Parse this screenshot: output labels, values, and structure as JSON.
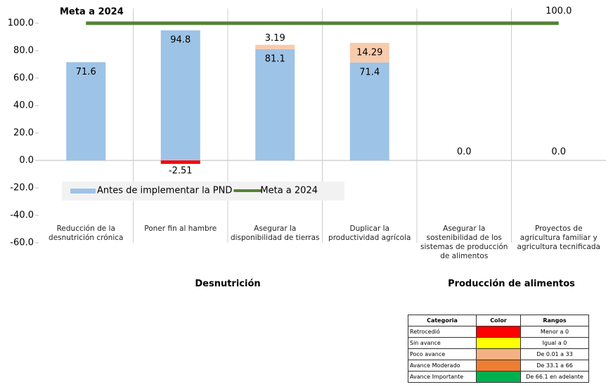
{
  "chart_data": {
    "type": "bar",
    "title": "Meta a 2024",
    "categories": [
      "Reducción de la desnutrición crónica",
      "Poner fin al hambre",
      "Asegurar la disponibilidad de tierras",
      "Duplicar la productividad agrícola",
      "Asegurar la sostenibilidad de los sistemas de producción de alimentos",
      "Proyectos de agricultura familiar y agricultura tecnificada"
    ],
    "groups": [
      {
        "label": "Desnutrición",
        "categories": [
          0,
          1,
          2,
          3
        ]
      },
      {
        "label": "Producción de alimentos",
        "categories": [
          4,
          5
        ]
      }
    ],
    "series": [
      {
        "name": "Antes de implementar la PND",
        "color": "#9dc3e6",
        "values": [
          71.6,
          94.8,
          81.1,
          71.4,
          0,
          0
        ],
        "value_labels": [
          "71.6",
          "94.8",
          "81.1",
          "71.4",
          "0.0",
          "0.0"
        ]
      },
      {
        "colors": [
          null,
          "#ff0000",
          "#f8cbad",
          "#f8cbad",
          null,
          null
        ],
        "values": [
          null,
          -2.51,
          3.19,
          14.29,
          null,
          null
        ]
      },
      {
        "name": "Meta a 2024",
        "type": "line",
        "color": "#548235",
        "values": [
          100,
          100,
          100,
          100,
          100,
          100
        ],
        "value_labels": [
          null,
          null,
          null,
          null,
          null,
          "100.0"
        ]
      }
    ],
    "ylim": [
      -60,
      100
    ],
    "yticks": [
      {
        "value": -60,
        "label": "-60.0"
      },
      {
        "value": -40,
        "label": "-40.0"
      },
      {
        "value": -20,
        "label": "-20.0"
      },
      {
        "value": 0,
        "label": "0.0"
      },
      {
        "value": 20,
        "label": "20.0"
      },
      {
        "value": 40,
        "label": "40.0"
      },
      {
        "value": 60,
        "label": "60.0"
      },
      {
        "value": 80,
        "label": "80.0"
      },
      {
        "value": 100,
        "label": "100.0"
      }
    ],
    "legend": "bottom-left"
  },
  "status_table": {
    "header": [
      "Categoria",
      "Color",
      "Rangos"
    ],
    "rows": [
      [
        "Retrocedió",
        "#ff0000",
        "Menor a 0"
      ],
      [
        "Sin avance",
        "#ffff00",
        "Igual a 0"
      ],
      [
        "Poco avance",
        "#f4b183",
        "De 0.01 a 33"
      ],
      [
        "Avance Moderado",
        "#ed7d31",
        "De 33.1 a 66"
      ],
      [
        "Avance Importante",
        "#00b050",
        "De 66.1 en adelante"
      ]
    ]
  }
}
